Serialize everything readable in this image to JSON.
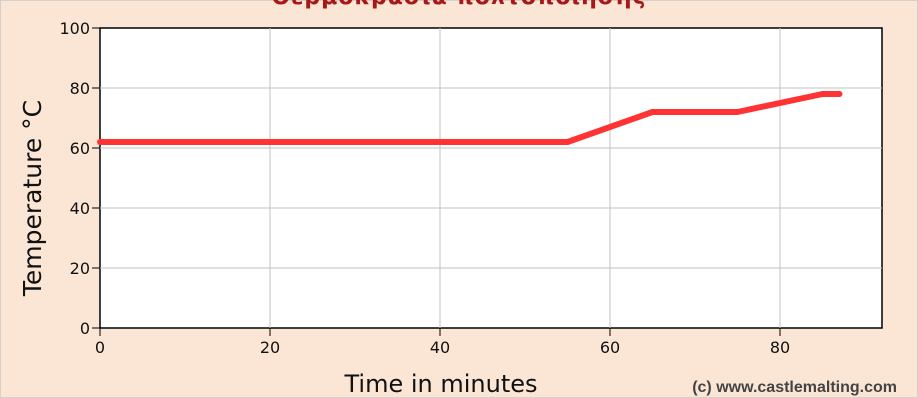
{
  "chart_data": {
    "type": "line",
    "title": "Θερμοκρασία πολτοποίησης",
    "xlabel": "Time in minutes",
    "ylabel": "Temperature °C",
    "xlim": [
      0,
      92
    ],
    "ylim": [
      0,
      100
    ],
    "x_ticks": [
      0,
      20,
      40,
      60,
      80
    ],
    "y_ticks": [
      0,
      20,
      40,
      60,
      80,
      100
    ],
    "grid": true,
    "series": [
      {
        "color": "#ff3333",
        "points": [
          {
            "x": 0,
            "y": 62
          },
          {
            "x": 55,
            "y": 62
          },
          {
            "x": 65,
            "y": 72
          },
          {
            "x": 75,
            "y": 72
          },
          {
            "x": 85,
            "y": 78
          },
          {
            "x": 87,
            "y": 78
          }
        ]
      }
    ],
    "credit": "(c) www.castlemalting.com"
  }
}
